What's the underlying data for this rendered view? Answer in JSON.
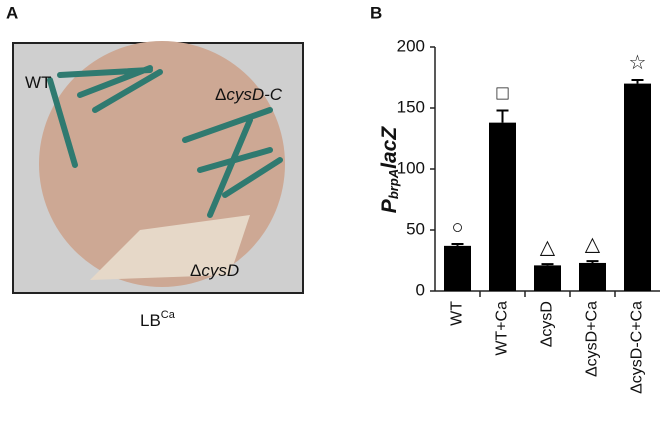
{
  "panel_a": {
    "label": "A",
    "strains": [
      {
        "prefix": "",
        "italic": "",
        "plain": "WT"
      },
      {
        "prefix": "Δ",
        "italic": "cysD-C",
        "plain": ""
      },
      {
        "prefix": "Δ",
        "italic": "cysD",
        "plain": ""
      }
    ],
    "caption": {
      "main": "LB",
      "sup": "Ca"
    }
  },
  "chart_data": {
    "type": "bar",
    "panel_label": "B",
    "y_label": {
      "main": "P",
      "sub": "brpA",
      "tail": "lacZ"
    },
    "categories": [
      "WT",
      "WT+Ca",
      "ΔcysD",
      "ΔcysD+Ca",
      "ΔcysD-C+Ca"
    ],
    "values": [
      37,
      138,
      21,
      23,
      170
    ],
    "errors": [
      1.5,
      10,
      1,
      1.5,
      3
    ],
    "annotations": [
      "○",
      "□",
      "△",
      "△",
      "☆"
    ],
    "color": "#000000",
    "ylim": [
      0,
      200
    ],
    "yticks": [
      0,
      50,
      100,
      150,
      200
    ]
  }
}
